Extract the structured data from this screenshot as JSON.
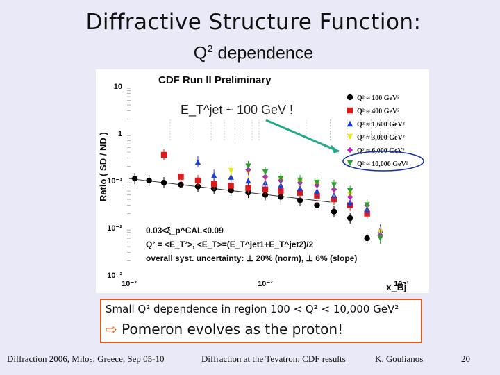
{
  "slide": {
    "title": "Diffractive Structure Function:",
    "subtitle_main": "Q",
    "subtitle_sup": "2",
    "subtitle_rest": " dependence"
  },
  "summary": {
    "line1": "Small Q² dependence in region 100 < Q² < 10,000 GeV²",
    "line2_arrow": "⇨",
    "line2_text": "Pomeron evolves as the proton!"
  },
  "footer": {
    "conference": "Diffraction 2006, Milos, Greece, Sep 05-10",
    "talk_title": "Diffraction at the Tevatron: CDF results",
    "author": "K. Goulianos",
    "page": "20"
  },
  "colors": {
    "background": "#e9e9f7",
    "callout_arrow": "#22aa88",
    "highlight_ellipse": "#1a2fa0",
    "summary_border": "#e05a20"
  },
  "chart_data": {
    "type": "scatter",
    "title": "CDF Run II Preliminary",
    "ylabel": "Ratio  ( SD / ND )",
    "xlabel": "x_Bj",
    "x_scale": "log",
    "y_scale": "log",
    "xlim": [
      0.001,
      0.1
    ],
    "ylim": [
      0.001,
      10
    ],
    "x_tick_labels": [
      "10⁻³",
      "10⁻²",
      "10⁻¹"
    ],
    "y_tick_labels": [
      "10⁻³",
      "10⁻²",
      "10⁻¹",
      "1",
      "10"
    ],
    "grid": false,
    "legend_position": "top-right",
    "annotation_et": "E_T^jet ~ 100 GeV !",
    "cut_text_1": "0.03<ξ_p^CAL<0.09",
    "cut_text_2": "Q² = <E_T²>,   <E_T>=(E_T^jet1+E_T^jet2)/2",
    "cut_text_3": "overall syst. uncertainty: ⊥ 20% (norm), ⊥ 6% (slope)",
    "series": [
      {
        "name": "Q² ≈ 100 GeV²",
        "color": "#000000",
        "marker": "circle",
        "x": [
          0.0011,
          0.0014,
          0.0018,
          0.0024,
          0.0032,
          0.0042,
          0.0056,
          0.0075,
          0.01,
          0.013,
          0.018,
          0.024,
          0.032,
          0.042,
          0.056
        ],
        "y": [
          0.11,
          0.1,
          0.09,
          0.082,
          0.075,
          0.068,
          0.062,
          0.056,
          0.05,
          0.045,
          0.038,
          0.03,
          0.022,
          0.016,
          0.006
        ]
      },
      {
        "name": "Q² ≈ 400 GeV²",
        "color": "#e01818",
        "marker": "square",
        "x": [
          0.0018,
          0.0024,
          0.0032,
          0.0042,
          0.0056,
          0.0075,
          0.01,
          0.013,
          0.018,
          0.024,
          0.032,
          0.042,
          0.056
        ],
        "y": [
          0.35,
          0.12,
          0.1,
          0.085,
          0.078,
          0.07,
          0.065,
          0.06,
          0.055,
          0.048,
          0.04,
          0.03,
          0.02
        ]
      },
      {
        "name": "Q² ≈ 1,600 GeV²",
        "color": "#1f3fd0",
        "marker": "triangle-up",
        "x": [
          0.0032,
          0.0042,
          0.0056,
          0.0075,
          0.01,
          0.013,
          0.018,
          0.024,
          0.032,
          0.042,
          0.056,
          0.07
        ],
        "y": [
          0.25,
          0.13,
          0.12,
          0.1,
          0.09,
          0.08,
          0.07,
          0.06,
          0.05,
          0.035,
          0.025,
          0.009
        ]
      },
      {
        "name": "Q² ≈ 3,000 GeV²",
        "color": "#e8e820",
        "marker": "triangle-down",
        "x": [
          0.0056,
          0.0075,
          0.01,
          0.013,
          0.018,
          0.024,
          0.032,
          0.042,
          0.056,
          0.07
        ],
        "y": [
          0.16,
          0.15,
          0.11,
          0.1,
          0.09,
          0.08,
          0.06,
          0.05,
          0.03,
          0.008
        ]
      },
      {
        "name": "Q² ≈ 6,000 GeV²",
        "color": "#c020c0",
        "marker": "diamond",
        "x": [
          0.0075,
          0.01,
          0.013,
          0.018,
          0.024,
          0.032,
          0.042,
          0.056,
          0.07
        ],
        "y": [
          0.17,
          0.12,
          0.1,
          0.09,
          0.08,
          0.065,
          0.045,
          0.03,
          0.007
        ]
      },
      {
        "name": "Q² ≈ 10,000 GeV²",
        "color": "#30a030",
        "marker": "triangle-down",
        "x": [
          0.0075,
          0.01,
          0.013,
          0.018,
          0.024,
          0.032,
          0.042,
          0.056,
          0.07
        ],
        "y": [
          0.2,
          0.15,
          0.11,
          0.1,
          0.09,
          0.08,
          0.06,
          0.03,
          0.006
        ]
      }
    ],
    "legend_labels": [
      "Q² ≈ 100 GeV²",
      "Q² ≈ 400 GeV²",
      "Q² ≈ 1,600 GeV²",
      "Q² ≈ 3,000 GeV²",
      "Q² ≈ 6,000 GeV²",
      "Q² ≈ 10,000 GeV²"
    ]
  }
}
